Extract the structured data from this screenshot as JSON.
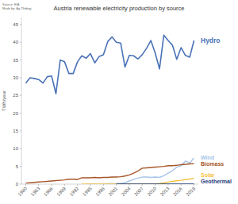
{
  "chart_data": {
    "type": "line",
    "title": "Austria renewable electricity production by source",
    "source": "Source: EIA",
    "credit": "Made by: Ag Tlhdirgj",
    "y_label": "TWh/year",
    "x": [
      1980,
      1981,
      1982,
      1983,
      1984,
      1985,
      1986,
      1987,
      1988,
      1989,
      1990,
      1991,
      1992,
      1993,
      1994,
      1995,
      1996,
      1997,
      1998,
      1999,
      2000,
      2001,
      2002,
      2003,
      2004,
      2005,
      2006,
      2007,
      2008,
      2009,
      2010,
      2011,
      2012,
      2013,
      2014,
      2015,
      2016,
      2017,
      2018,
      2019
    ],
    "xlim": [
      1979,
      2020
    ],
    "xticks": [
      1980,
      1983,
      1986,
      1989,
      1992,
      1995,
      1998,
      2001,
      2004,
      2007,
      2010,
      2013,
      2016,
      2019
    ],
    "ylim": [
      0,
      47
    ],
    "yticks": [
      0,
      5,
      10,
      15,
      20,
      25,
      30,
      35,
      40,
      45
    ],
    "grid": false,
    "series": [
      {
        "name": "Hydro",
        "color": "#4a72b8",
        "values": [
          28.5,
          30,
          29.8,
          29.5,
          28.5,
          30.3,
          30.5,
          25.5,
          35,
          34.5,
          31.2,
          31.2,
          34.5,
          36.2,
          35.5,
          36.8,
          34.2,
          36,
          36.5,
          40.2,
          41.5,
          40,
          39.8,
          33,
          36.3,
          36.2,
          35.3,
          36.5,
          38.3,
          40.5,
          37,
          32.5,
          42,
          40.5,
          39.2,
          35.2,
          38.5,
          36.3,
          35.8,
          40.5
        ]
      },
      {
        "name": "Wind",
        "color": "#a6c4e8",
        "values": [
          null,
          null,
          null,
          null,
          null,
          null,
          null,
          null,
          null,
          null,
          null,
          null,
          null,
          null,
          0,
          0.01,
          0.02,
          0.03,
          0.05,
          0.1,
          0.1,
          0.2,
          0.2,
          0.4,
          0.9,
          1.3,
          1.7,
          2.0,
          2.0,
          1.9,
          2.0,
          1.9,
          2.4,
          3.1,
          3.8,
          4.8,
          5.2,
          6.5,
          6.0,
          7.4
        ]
      },
      {
        "name": "Biomass",
        "color": "#a65628",
        "values": [
          0.3,
          0.4,
          0.5,
          0.6,
          0.7,
          0.8,
          0.9,
          1.0,
          1.1,
          1.2,
          1.4,
          1.4,
          1.3,
          1.8,
          1.8,
          1.8,
          1.9,
          1.8,
          1.9,
          1.9,
          2.0,
          2.0,
          2.1,
          2.3,
          2.6,
          3.1,
          3.7,
          4.5,
          4.6,
          4.7,
          4.8,
          4.9,
          5.0,
          5.2,
          5.2,
          5.3,
          5.5,
          5.6,
          5.7,
          5.8
        ]
      },
      {
        "name": "Solar",
        "color": "#f6c244",
        "values": [
          null,
          null,
          null,
          null,
          null,
          null,
          null,
          null,
          null,
          null,
          null,
          null,
          null,
          0,
          0,
          0,
          0,
          0,
          0,
          0,
          0,
          0.01,
          0.01,
          0.01,
          0.01,
          0.02,
          0.02,
          0.02,
          0.03,
          0.04,
          0.09,
          0.17,
          0.34,
          0.6,
          0.8,
          0.94,
          1.1,
          1.3,
          1.4,
          1.7
        ]
      },
      {
        "name": "Geothermal",
        "color": "#1f3c78",
        "values": [
          null,
          null,
          null,
          null,
          null,
          null,
          null,
          null,
          null,
          null,
          null,
          null,
          null,
          null,
          null,
          null,
          null,
          null,
          null,
          null,
          null,
          0.001,
          0.002,
          0.002,
          0.002,
          0.002,
          0.002,
          0.002,
          0.002,
          0.002,
          0.002,
          0.002,
          0.002,
          0.002,
          0.002,
          0.002,
          0.002,
          0.002,
          0.002,
          0.002
        ]
      }
    ]
  }
}
